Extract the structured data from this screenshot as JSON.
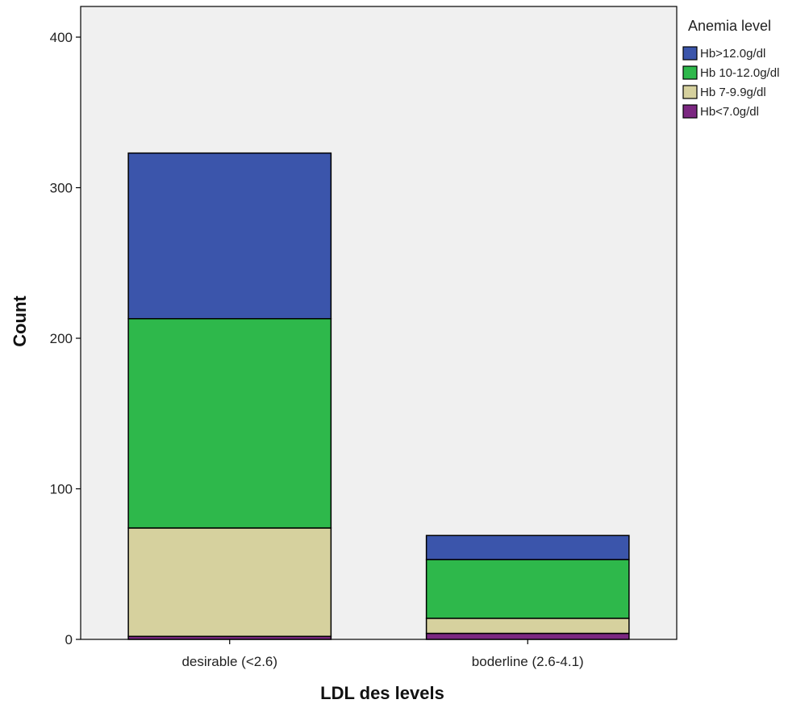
{
  "chart_data": {
    "type": "bar",
    "stacked": true,
    "categories": [
      "desirable (<2.6)",
      "boderline (2.6-4.1)"
    ],
    "series": [
      {
        "name": "Hb<7.0g/dl",
        "color": "#7b2781",
        "values": [
          2,
          4
        ]
      },
      {
        "name": "Hb 7-9.9g/dl",
        "color": "#d6d19e",
        "values": [
          72,
          10
        ]
      },
      {
        "name": "Hb 10-12.0g/dl",
        "color": "#2eb84b",
        "values": [
          139,
          39
        ]
      },
      {
        "name": "Hb>12.0g/dl",
        "color": "#3b55ab",
        "values": [
          110,
          16
        ]
      }
    ],
    "legend_order": [
      "Hb>12.0g/dl",
      "Hb 10-12.0g/dl",
      "Hb 7-9.9g/dl",
      "Hb<7.0g/dl"
    ],
    "legend_title": "Anemia level",
    "legend_position": "right",
    "xlabel": "LDL des levels",
    "ylabel": "Count",
    "ylim": [
      0,
      400
    ],
    "yticks": [
      0,
      100,
      200,
      300,
      400
    ],
    "grid": false,
    "plot_background": "#f0f0f0"
  }
}
